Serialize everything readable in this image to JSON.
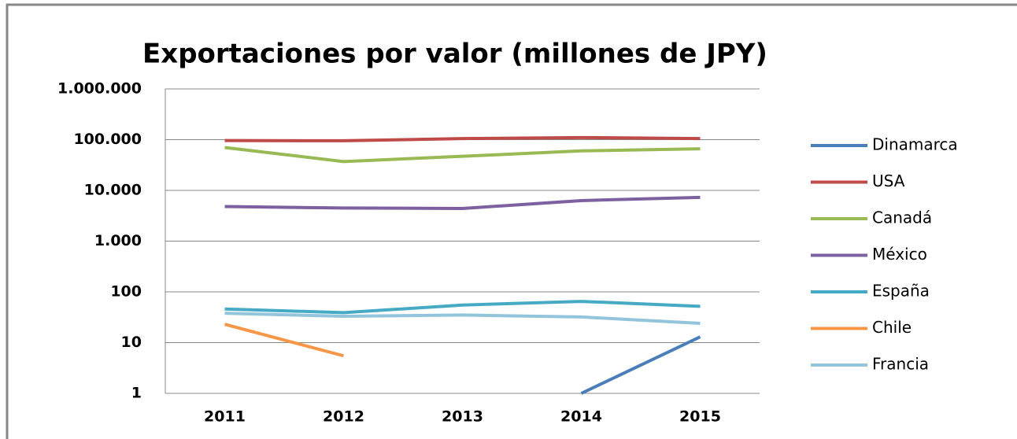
{
  "chart_data": {
    "type": "line",
    "title": "Exportaciones por valor (millones de JPY)",
    "categories": [
      "2011",
      "2012",
      "2013",
      "2014",
      "2015"
    ],
    "log_scale": true,
    "grid": true,
    "legend": "right",
    "ylim": [
      1,
      1000000
    ],
    "yticks": [
      1,
      10,
      100,
      {
        "value": 1000,
        "label": "1.000"
      },
      {
        "value": 10000,
        "label": "10.000"
      },
      {
        "value": 100000,
        "label": "100.000"
      },
      {
        "value": 1000000,
        "label": "1.000.000"
      }
    ],
    "series": [
      {
        "name": "Dinamarca",
        "color": "#4a7ebb",
        "values": [
          null,
          null,
          null,
          1,
          13
        ]
      },
      {
        "name": "USA",
        "color": "#be4b48",
        "values": [
          96000,
          95000,
          105000,
          110000,
          105000
        ]
      },
      {
        "name": "Canadá",
        "color": "#98b954",
        "values": [
          70000,
          37000,
          47000,
          60000,
          66000
        ]
      },
      {
        "name": "México",
        "color": "#7d60a0",
        "values": [
          4800,
          4500,
          4400,
          6300,
          7300
        ]
      },
      {
        "name": "España",
        "color": "#46aac5",
        "values": [
          46,
          39,
          55,
          65,
          52
        ]
      },
      {
        "name": "Chile",
        "color": "#f79646",
        "values": [
          23,
          5.5,
          null,
          null,
          null
        ]
      },
      {
        "name": "Francia",
        "color": "#92c4dc",
        "values": [
          38,
          33,
          35,
          32,
          24
        ]
      }
    ]
  }
}
